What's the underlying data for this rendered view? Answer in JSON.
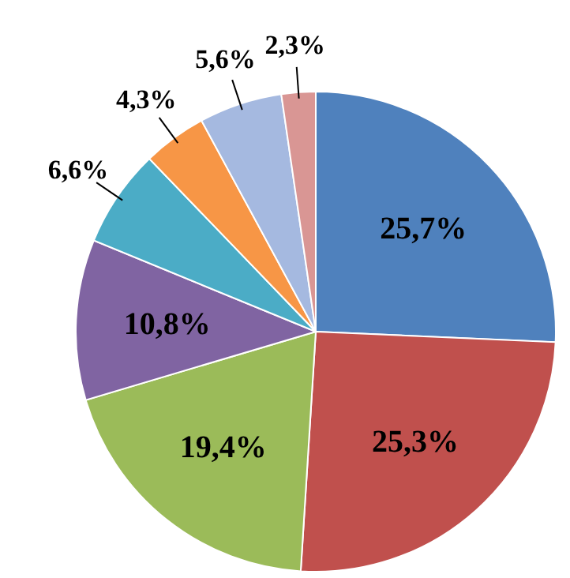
{
  "chart_data": {
    "type": "pie",
    "categories": [
      null,
      null,
      null,
      null,
      null,
      null,
      null,
      null
    ],
    "values": [
      25.7,
      25.3,
      19.4,
      10.8,
      6.6,
      4.3,
      5.6,
      2.3
    ],
    "colors": [
      "#4f81bd",
      "#c0504d",
      "#9bbb59",
      "#8064a2",
      "#4bacc6",
      "#f79646",
      "#a5b9e0",
      "#d99694"
    ],
    "value_labels": [
      "25,7%",
      "25,3%",
      "19,4%",
      "10,8%",
      "6,6%",
      "4,3%",
      "5,6%",
      "2,3%"
    ]
  }
}
